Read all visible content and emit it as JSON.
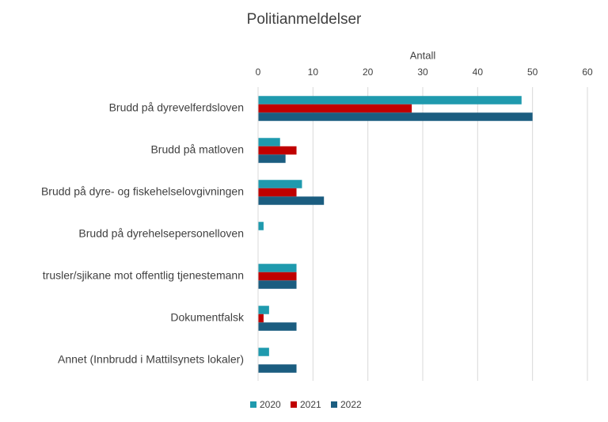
{
  "chart_data": {
    "type": "barh",
    "title": "Politianmeldelser",
    "x_label": "Antall",
    "categories": [
      "Brudd på dyrevelferdsloven",
      "Brudd på matloven",
      "Brudd på dyre- og fiskehelselovgivningen",
      "Brudd på dyrehelsepersonelloven",
      "trusler/sjikane mot offentlig tjenestemann",
      "Dokumentfalsk",
      "Annet (Innbrudd i Mattilsynets lokaler)"
    ],
    "series": [
      {
        "name": "2020",
        "color": "#1f9aae",
        "values": [
          48,
          4,
          8,
          1,
          7,
          2,
          2
        ]
      },
      {
        "name": "2021",
        "color": "#c00000",
        "values": [
          28,
          7,
          7,
          0,
          7,
          1,
          0
        ]
      },
      {
        "name": "2022",
        "color": "#1b5d80",
        "values": [
          50,
          5,
          12,
          0,
          7,
          7,
          7
        ]
      }
    ],
    "xlim": [
      0,
      60
    ],
    "xticks": [
      0,
      10,
      20,
      30,
      40,
      50,
      60
    ],
    "grid": true,
    "legend": "bottom"
  }
}
